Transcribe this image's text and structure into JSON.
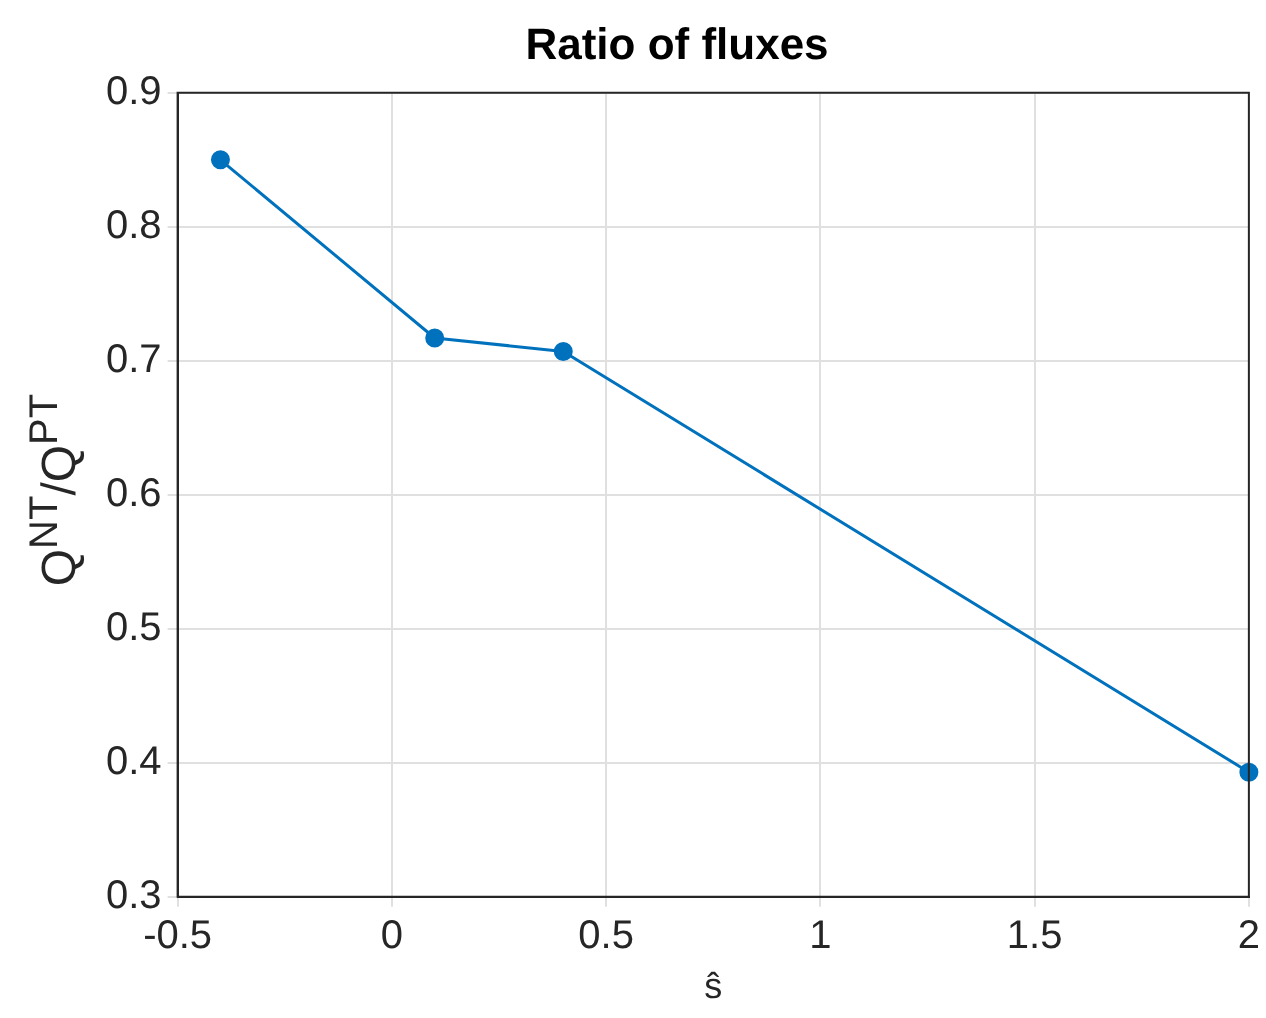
{
  "chart_data": {
    "type": "line",
    "title": "Ratio of fluxes",
    "xlabel": "ŝ",
    "ylabel": "Q$^{NT}$/Q$^{PT}$",
    "x": [
      -0.4,
      0.1,
      0.4,
      2
    ],
    "series": [
      {
        "color": "#0072bd",
        "values": [
          0.85,
          0.717,
          0.707,
          0.393
        ]
      }
    ],
    "xlim": [
      -0.5,
      2
    ],
    "xticks": [
      -0.5,
      0,
      0.5,
      1,
      1.5,
      2
    ],
    "ylim": [
      0.3,
      0.9
    ],
    "yticks": [
      0.3,
      0.4,
      0.5,
      0.6,
      0.7,
      0.8,
      0.9
    ],
    "grid": true,
    "marker": "circle",
    "line_style": "solid",
    "legend": false
  }
}
